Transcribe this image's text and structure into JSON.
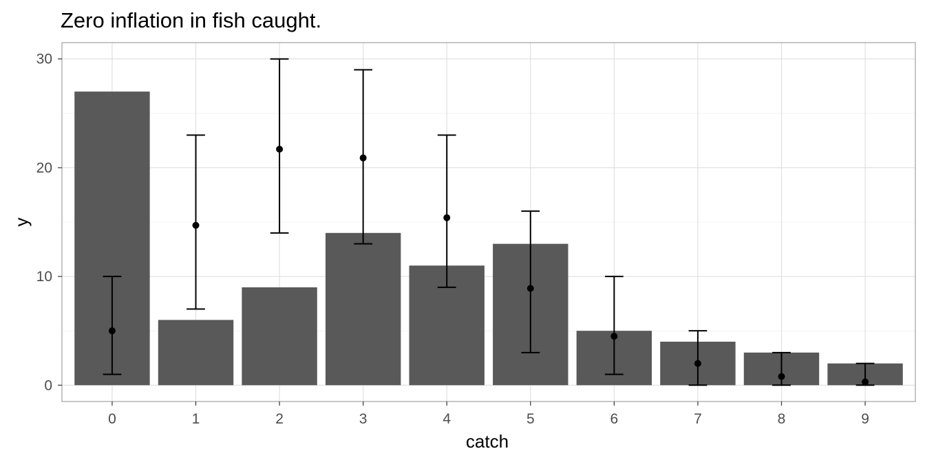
{
  "chart_data": {
    "type": "bar",
    "title": "Zero inflation in fish caught.",
    "xlabel": "catch",
    "ylabel": "y",
    "categories": [
      "0",
      "1",
      "2",
      "3",
      "4",
      "5",
      "6",
      "7",
      "8",
      "9"
    ],
    "ylim": [
      -1.5,
      31.5
    ],
    "yticks": [
      0,
      10,
      20,
      30
    ],
    "grid": true,
    "series": [
      {
        "type": "bar",
        "values": [
          27,
          6,
          9,
          14,
          11,
          13,
          5,
          4,
          3,
          2
        ],
        "color": "#595959"
      },
      {
        "type": "pointrange",
        "values": [
          5.0,
          14.7,
          21.7,
          20.9,
          15.4,
          8.9,
          4.5,
          2.0,
          0.8,
          0.3
        ],
        "lower": [
          1,
          7,
          14,
          13,
          9,
          3,
          1,
          0,
          0,
          0
        ],
        "upper": [
          10,
          23,
          30,
          29,
          23,
          16,
          10,
          5,
          3,
          2
        ],
        "color": "#000000"
      }
    ]
  },
  "colors": {
    "bar": "#595959",
    "errorbar": "#000000",
    "panel_border": "#b3b3b3",
    "grid": "#e0e0e0"
  }
}
